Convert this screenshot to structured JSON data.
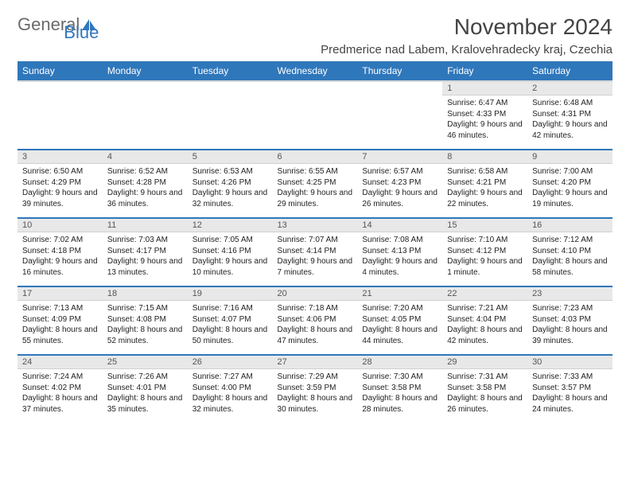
{
  "brand": {
    "part1": "General",
    "part2": "Blue"
  },
  "title": "November 2024",
  "location": "Predmerice nad Labem, Kralovehradecky kraj, Czechia",
  "colors": {
    "header_bg": "#2f77bb",
    "header_text": "#ffffff",
    "daynum_bg": "#e8e8e8",
    "row_border": "#2f77bb",
    "logo_gray": "#6b6b6b",
    "logo_blue": "#2f77bb"
  },
  "weekdays": [
    "Sunday",
    "Monday",
    "Tuesday",
    "Wednesday",
    "Thursday",
    "Friday",
    "Saturday"
  ],
  "weeks": [
    [
      null,
      null,
      null,
      null,
      null,
      {
        "n": "1",
        "sr": "6:47 AM",
        "ss": "4:33 PM",
        "dl": "9 hours and 46 minutes."
      },
      {
        "n": "2",
        "sr": "6:48 AM",
        "ss": "4:31 PM",
        "dl": "9 hours and 42 minutes."
      }
    ],
    [
      {
        "n": "3",
        "sr": "6:50 AM",
        "ss": "4:29 PM",
        "dl": "9 hours and 39 minutes."
      },
      {
        "n": "4",
        "sr": "6:52 AM",
        "ss": "4:28 PM",
        "dl": "9 hours and 36 minutes."
      },
      {
        "n": "5",
        "sr": "6:53 AM",
        "ss": "4:26 PM",
        "dl": "9 hours and 32 minutes."
      },
      {
        "n": "6",
        "sr": "6:55 AM",
        "ss": "4:25 PM",
        "dl": "9 hours and 29 minutes."
      },
      {
        "n": "7",
        "sr": "6:57 AM",
        "ss": "4:23 PM",
        "dl": "9 hours and 26 minutes."
      },
      {
        "n": "8",
        "sr": "6:58 AM",
        "ss": "4:21 PM",
        "dl": "9 hours and 22 minutes."
      },
      {
        "n": "9",
        "sr": "7:00 AM",
        "ss": "4:20 PM",
        "dl": "9 hours and 19 minutes."
      }
    ],
    [
      {
        "n": "10",
        "sr": "7:02 AM",
        "ss": "4:18 PM",
        "dl": "9 hours and 16 minutes."
      },
      {
        "n": "11",
        "sr": "7:03 AM",
        "ss": "4:17 PM",
        "dl": "9 hours and 13 minutes."
      },
      {
        "n": "12",
        "sr": "7:05 AM",
        "ss": "4:16 PM",
        "dl": "9 hours and 10 minutes."
      },
      {
        "n": "13",
        "sr": "7:07 AM",
        "ss": "4:14 PM",
        "dl": "9 hours and 7 minutes."
      },
      {
        "n": "14",
        "sr": "7:08 AM",
        "ss": "4:13 PM",
        "dl": "9 hours and 4 minutes."
      },
      {
        "n": "15",
        "sr": "7:10 AM",
        "ss": "4:12 PM",
        "dl": "9 hours and 1 minute."
      },
      {
        "n": "16",
        "sr": "7:12 AM",
        "ss": "4:10 PM",
        "dl": "8 hours and 58 minutes."
      }
    ],
    [
      {
        "n": "17",
        "sr": "7:13 AM",
        "ss": "4:09 PM",
        "dl": "8 hours and 55 minutes."
      },
      {
        "n": "18",
        "sr": "7:15 AM",
        "ss": "4:08 PM",
        "dl": "8 hours and 52 minutes."
      },
      {
        "n": "19",
        "sr": "7:16 AM",
        "ss": "4:07 PM",
        "dl": "8 hours and 50 minutes."
      },
      {
        "n": "20",
        "sr": "7:18 AM",
        "ss": "4:06 PM",
        "dl": "8 hours and 47 minutes."
      },
      {
        "n": "21",
        "sr": "7:20 AM",
        "ss": "4:05 PM",
        "dl": "8 hours and 44 minutes."
      },
      {
        "n": "22",
        "sr": "7:21 AM",
        "ss": "4:04 PM",
        "dl": "8 hours and 42 minutes."
      },
      {
        "n": "23",
        "sr": "7:23 AM",
        "ss": "4:03 PM",
        "dl": "8 hours and 39 minutes."
      }
    ],
    [
      {
        "n": "24",
        "sr": "7:24 AM",
        "ss": "4:02 PM",
        "dl": "8 hours and 37 minutes."
      },
      {
        "n": "25",
        "sr": "7:26 AM",
        "ss": "4:01 PM",
        "dl": "8 hours and 35 minutes."
      },
      {
        "n": "26",
        "sr": "7:27 AM",
        "ss": "4:00 PM",
        "dl": "8 hours and 32 minutes."
      },
      {
        "n": "27",
        "sr": "7:29 AM",
        "ss": "3:59 PM",
        "dl": "8 hours and 30 minutes."
      },
      {
        "n": "28",
        "sr": "7:30 AM",
        "ss": "3:58 PM",
        "dl": "8 hours and 28 minutes."
      },
      {
        "n": "29",
        "sr": "7:31 AM",
        "ss": "3:58 PM",
        "dl": "8 hours and 26 minutes."
      },
      {
        "n": "30",
        "sr": "7:33 AM",
        "ss": "3:57 PM",
        "dl": "8 hours and 24 minutes."
      }
    ]
  ],
  "labels": {
    "sunrise": "Sunrise:",
    "sunset": "Sunset:",
    "daylight": "Daylight:"
  }
}
